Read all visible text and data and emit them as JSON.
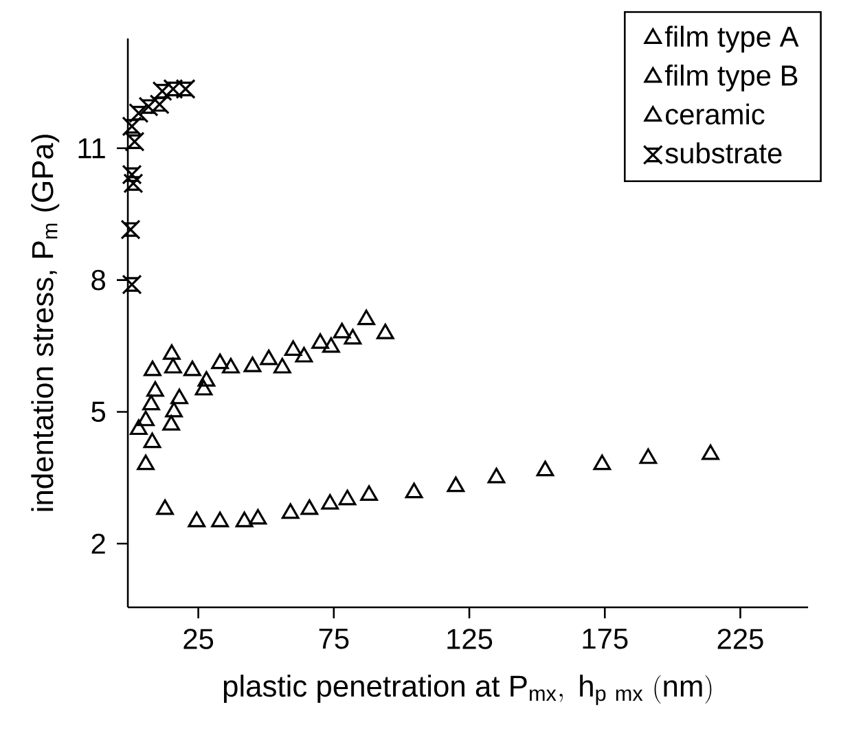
{
  "chart_data": {
    "type": "scatter",
    "xlabel": "\\mathrm{plastic\\ penetration\\ at\\ P_{mx},\\ h_{p\\ mx}\\ (nm)}",
    "ylabel": "indentation stress, P$_{m}$ (GPa)",
    "xlim": [
      -1,
      250
    ],
    "ylim": [
      0.55,
      13.5
    ],
    "xticks": [
      25,
      75,
      125,
      175,
      225
    ],
    "yticks": [
      2,
      5,
      8,
      11
    ],
    "legend": "top right",
    "grid": false,
    "series": [
      {
        "name": "film type A",
        "color": "#000000",
        "marker": "triangle",
        "x": [
          12.7,
          24.4,
          33,
          42,
          47,
          59,
          66,
          73.6,
          80,
          88,
          104.6,
          120,
          135,
          153,
          174,
          191,
          214
        ],
        "values": [
          2.78,
          2.5,
          2.5,
          2.5,
          2.56,
          2.69,
          2.78,
          2.9,
          3.0,
          3.1,
          3.16,
          3.3,
          3.5,
          3.66,
          3.8,
          3.94,
          4.03
        ]
      },
      {
        "name": "film type B",
        "color": "#000000",
        "marker": "triangle",
        "x": [
          3.0,
          5.6,
          7.6,
          9.1,
          8.1,
          15.2,
          15.7,
          22.8,
          33,
          51,
          60,
          70,
          78,
          87
        ],
        "values": [
          4.6,
          4.8,
          5.16,
          5.47,
          5.94,
          6.31,
          6.0,
          5.94,
          6.1,
          6.19,
          6.4,
          6.56,
          6.8,
          7.1
        ]
      },
      {
        "name": "ceramic",
        "color": "#000000",
        "marker": "triangle",
        "x": [
          5.6,
          8,
          15,
          16,
          18,
          27,
          28,
          37,
          45,
          56,
          64,
          74,
          82,
          94
        ],
        "values": [
          3.8,
          4.3,
          4.7,
          5.0,
          5.3,
          5.5,
          5.7,
          6.0,
          6.03,
          6.0,
          6.25,
          6.47,
          6.66,
          6.78
        ]
      },
      {
        "name": "substrate",
        "color": "#000000",
        "marker": "cross",
        "x": [
          0.5,
          0,
          1,
          0.5,
          1.5,
          0.5,
          3,
          6.6,
          10.7,
          11.7,
          15.7,
          20.3
        ],
        "values": [
          7.9,
          9.15,
          10.2,
          10.4,
          11.15,
          11.5,
          11.8,
          11.95,
          12.0,
          12.3,
          12.35,
          12.35
        ]
      }
    ]
  }
}
